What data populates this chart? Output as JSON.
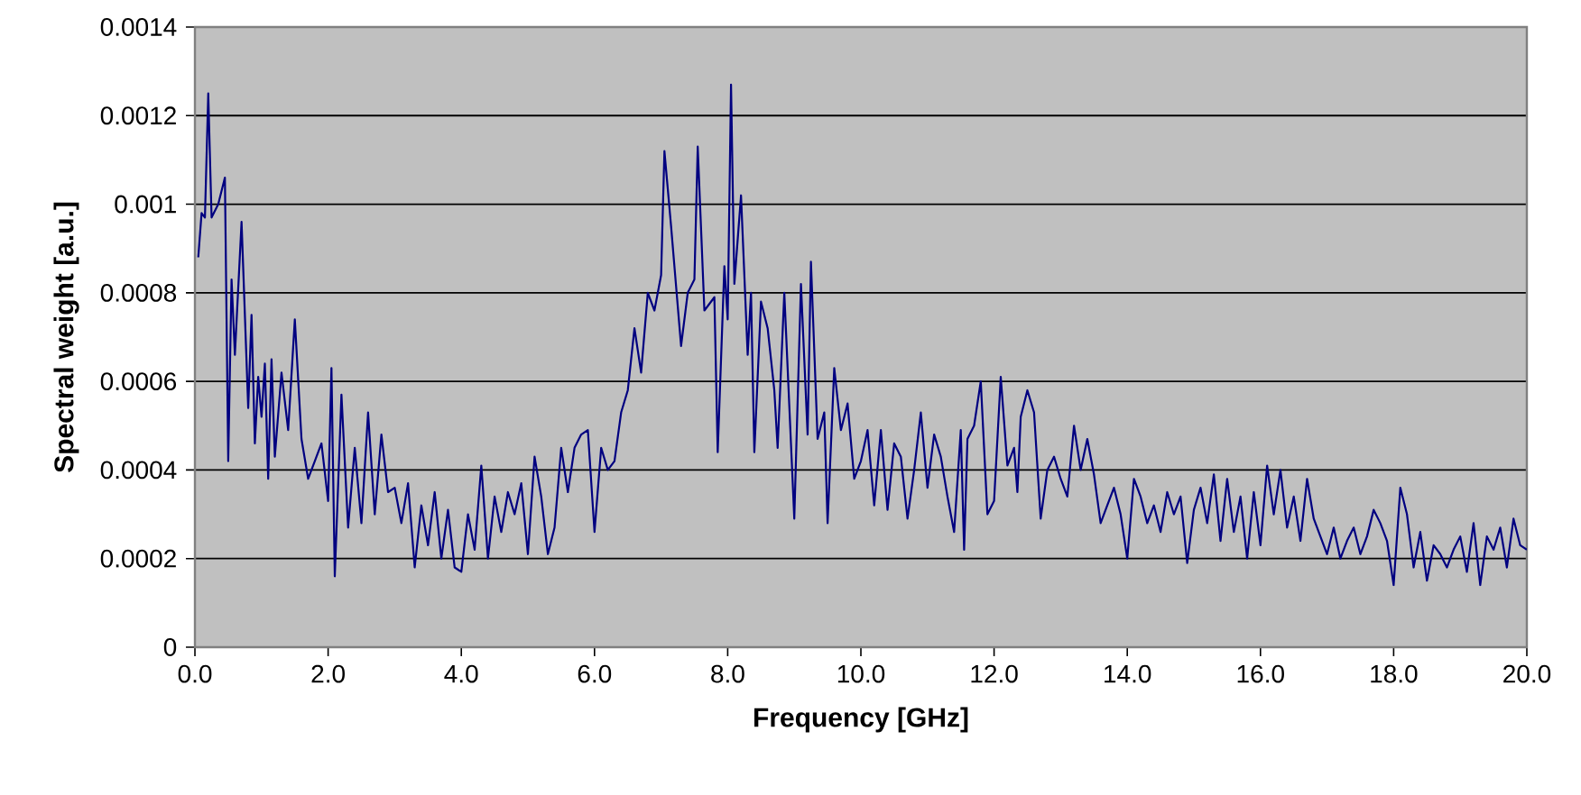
{
  "chart_data": {
    "type": "line",
    "xlabel": "Frequency [GHz]",
    "ylabel": "Spectral weight [a.u.]",
    "xlim": [
      0,
      20
    ],
    "ylim": [
      0,
      0.0014
    ],
    "xticks": [
      {
        "value": 0,
        "label": "0.0"
      },
      {
        "value": 2,
        "label": "2.0"
      },
      {
        "value": 4,
        "label": "4.0"
      },
      {
        "value": 6,
        "label": "6.0"
      },
      {
        "value": 8,
        "label": "8.0"
      },
      {
        "value": 10,
        "label": "10.0"
      },
      {
        "value": 12,
        "label": "12.0"
      },
      {
        "value": 14,
        "label": "14.0"
      },
      {
        "value": 16,
        "label": "16.0"
      },
      {
        "value": 18,
        "label": "18.0"
      },
      {
        "value": 20,
        "label": "20.0"
      }
    ],
    "yticks": [
      0,
      0.0002,
      0.0004,
      0.0006,
      0.0008,
      0.001,
      0.0012,
      0.0014
    ],
    "grid": "y",
    "marker": "none",
    "line_style": "solid",
    "series": [
      {
        "color": "#000080",
        "x": [
          0.05,
          0.1,
          0.15,
          0.2,
          0.25,
          0.35,
          0.45,
          0.5,
          0.55,
          0.6,
          0.7,
          0.8,
          0.85,
          0.9,
          0.95,
          1.0,
          1.05,
          1.1,
          1.15,
          1.2,
          1.3,
          1.4,
          1.5,
          1.6,
          1.7,
          1.8,
          1.9,
          2.0,
          2.05,
          2.1,
          2.2,
          2.3,
          2.4,
          2.5,
          2.6,
          2.7,
          2.8,
          2.9,
          3.0,
          3.1,
          3.2,
          3.3,
          3.4,
          3.5,
          3.6,
          3.7,
          3.8,
          3.9,
          4.0,
          4.1,
          4.2,
          4.3,
          4.4,
          4.5,
          4.6,
          4.7,
          4.8,
          4.9,
          5.0,
          5.1,
          5.2,
          5.3,
          5.4,
          5.5,
          5.6,
          5.7,
          5.8,
          5.9,
          6.0,
          6.1,
          6.2,
          6.3,
          6.4,
          6.5,
          6.6,
          6.7,
          6.8,
          6.9,
          7.0,
          7.05,
          7.15,
          7.3,
          7.4,
          7.5,
          7.55,
          7.65,
          7.8,
          7.85,
          7.95,
          8.0,
          8.05,
          8.1,
          8.2,
          8.3,
          8.35,
          8.4,
          8.5,
          8.6,
          8.7,
          8.75,
          8.85,
          9.0,
          9.1,
          9.2,
          9.25,
          9.35,
          9.45,
          9.5,
          9.6,
          9.7,
          9.8,
          9.9,
          10.0,
          10.1,
          10.2,
          10.3,
          10.4,
          10.5,
          10.6,
          10.7,
          10.8,
          10.9,
          11.0,
          11.1,
          11.2,
          11.3,
          11.4,
          11.5,
          11.55,
          11.6,
          11.7,
          11.8,
          11.9,
          12.0,
          12.1,
          12.2,
          12.3,
          12.35,
          12.4,
          12.5,
          12.6,
          12.7,
          12.8,
          12.9,
          13.0,
          13.1,
          13.2,
          13.3,
          13.4,
          13.5,
          13.6,
          13.7,
          13.8,
          13.9,
          14.0,
          14.1,
          14.2,
          14.3,
          14.4,
          14.5,
          14.6,
          14.7,
          14.8,
          14.9,
          15.0,
          15.1,
          15.2,
          15.3,
          15.4,
          15.5,
          15.6,
          15.7,
          15.8,
          15.9,
          16.0,
          16.1,
          16.2,
          16.3,
          16.4,
          16.5,
          16.6,
          16.7,
          16.8,
          16.9,
          17.0,
          17.1,
          17.2,
          17.3,
          17.4,
          17.5,
          17.6,
          17.7,
          17.8,
          17.9,
          18.0,
          18.1,
          18.2,
          18.3,
          18.4,
          18.5,
          18.6,
          18.7,
          18.8,
          18.9,
          19.0,
          19.1,
          19.2,
          19.3,
          19.4,
          19.5,
          19.6,
          19.7,
          19.8,
          19.9,
          20.0
        ],
        "values": [
          0.00088,
          0.00098,
          0.00097,
          0.00125,
          0.00097,
          0.001,
          0.00106,
          0.00042,
          0.00083,
          0.00066,
          0.00096,
          0.00054,
          0.00075,
          0.00046,
          0.00061,
          0.00052,
          0.00064,
          0.00038,
          0.00065,
          0.00043,
          0.00062,
          0.00049,
          0.00074,
          0.00047,
          0.00038,
          0.00042,
          0.00046,
          0.00033,
          0.00063,
          0.00016,
          0.00057,
          0.00027,
          0.00045,
          0.00028,
          0.00053,
          0.0003,
          0.00048,
          0.00035,
          0.00036,
          0.00028,
          0.00037,
          0.00018,
          0.00032,
          0.00023,
          0.00035,
          0.0002,
          0.00031,
          0.00018,
          0.00017,
          0.0003,
          0.00022,
          0.00041,
          0.0002,
          0.00034,
          0.00026,
          0.00035,
          0.0003,
          0.00037,
          0.00021,
          0.00043,
          0.00034,
          0.00021,
          0.00027,
          0.00045,
          0.00035,
          0.00045,
          0.00048,
          0.00049,
          0.00026,
          0.00045,
          0.0004,
          0.00042,
          0.00053,
          0.00058,
          0.00072,
          0.00062,
          0.0008,
          0.00076,
          0.00084,
          0.00112,
          0.00095,
          0.00068,
          0.0008,
          0.00083,
          0.00113,
          0.00076,
          0.00079,
          0.00044,
          0.00086,
          0.00074,
          0.00127,
          0.00082,
          0.00102,
          0.00066,
          0.0008,
          0.00044,
          0.00078,
          0.00072,
          0.00058,
          0.00045,
          0.0008,
          0.00029,
          0.00082,
          0.00048,
          0.00087,
          0.00047,
          0.00053,
          0.00028,
          0.00063,
          0.00049,
          0.00055,
          0.00038,
          0.00042,
          0.00049,
          0.00032,
          0.00049,
          0.00031,
          0.00046,
          0.00043,
          0.00029,
          0.0004,
          0.00053,
          0.00036,
          0.00048,
          0.00043,
          0.00034,
          0.00026,
          0.00049,
          0.00022,
          0.00047,
          0.0005,
          0.0006,
          0.0003,
          0.00033,
          0.00061,
          0.00041,
          0.00045,
          0.00035,
          0.00052,
          0.00058,
          0.00053,
          0.00029,
          0.0004,
          0.00043,
          0.00038,
          0.00034,
          0.0005,
          0.0004,
          0.00047,
          0.00039,
          0.00028,
          0.00032,
          0.00036,
          0.0003,
          0.0002,
          0.00038,
          0.00034,
          0.00028,
          0.00032,
          0.00026,
          0.00035,
          0.0003,
          0.00034,
          0.00019,
          0.00031,
          0.00036,
          0.00028,
          0.00039,
          0.00024,
          0.00038,
          0.00026,
          0.00034,
          0.0002,
          0.00035,
          0.00023,
          0.00041,
          0.0003,
          0.0004,
          0.00027,
          0.00034,
          0.00024,
          0.00038,
          0.00029,
          0.00025,
          0.00021,
          0.00027,
          0.0002,
          0.00024,
          0.00027,
          0.00021,
          0.00025,
          0.00031,
          0.00028,
          0.00024,
          0.00014,
          0.00036,
          0.0003,
          0.00018,
          0.00026,
          0.00015,
          0.00023,
          0.00021,
          0.00018,
          0.00022,
          0.00025,
          0.00017,
          0.00028,
          0.00014,
          0.00025,
          0.00022,
          0.00027,
          0.00018,
          0.00029,
          0.00023,
          0.00022
        ]
      }
    ]
  }
}
